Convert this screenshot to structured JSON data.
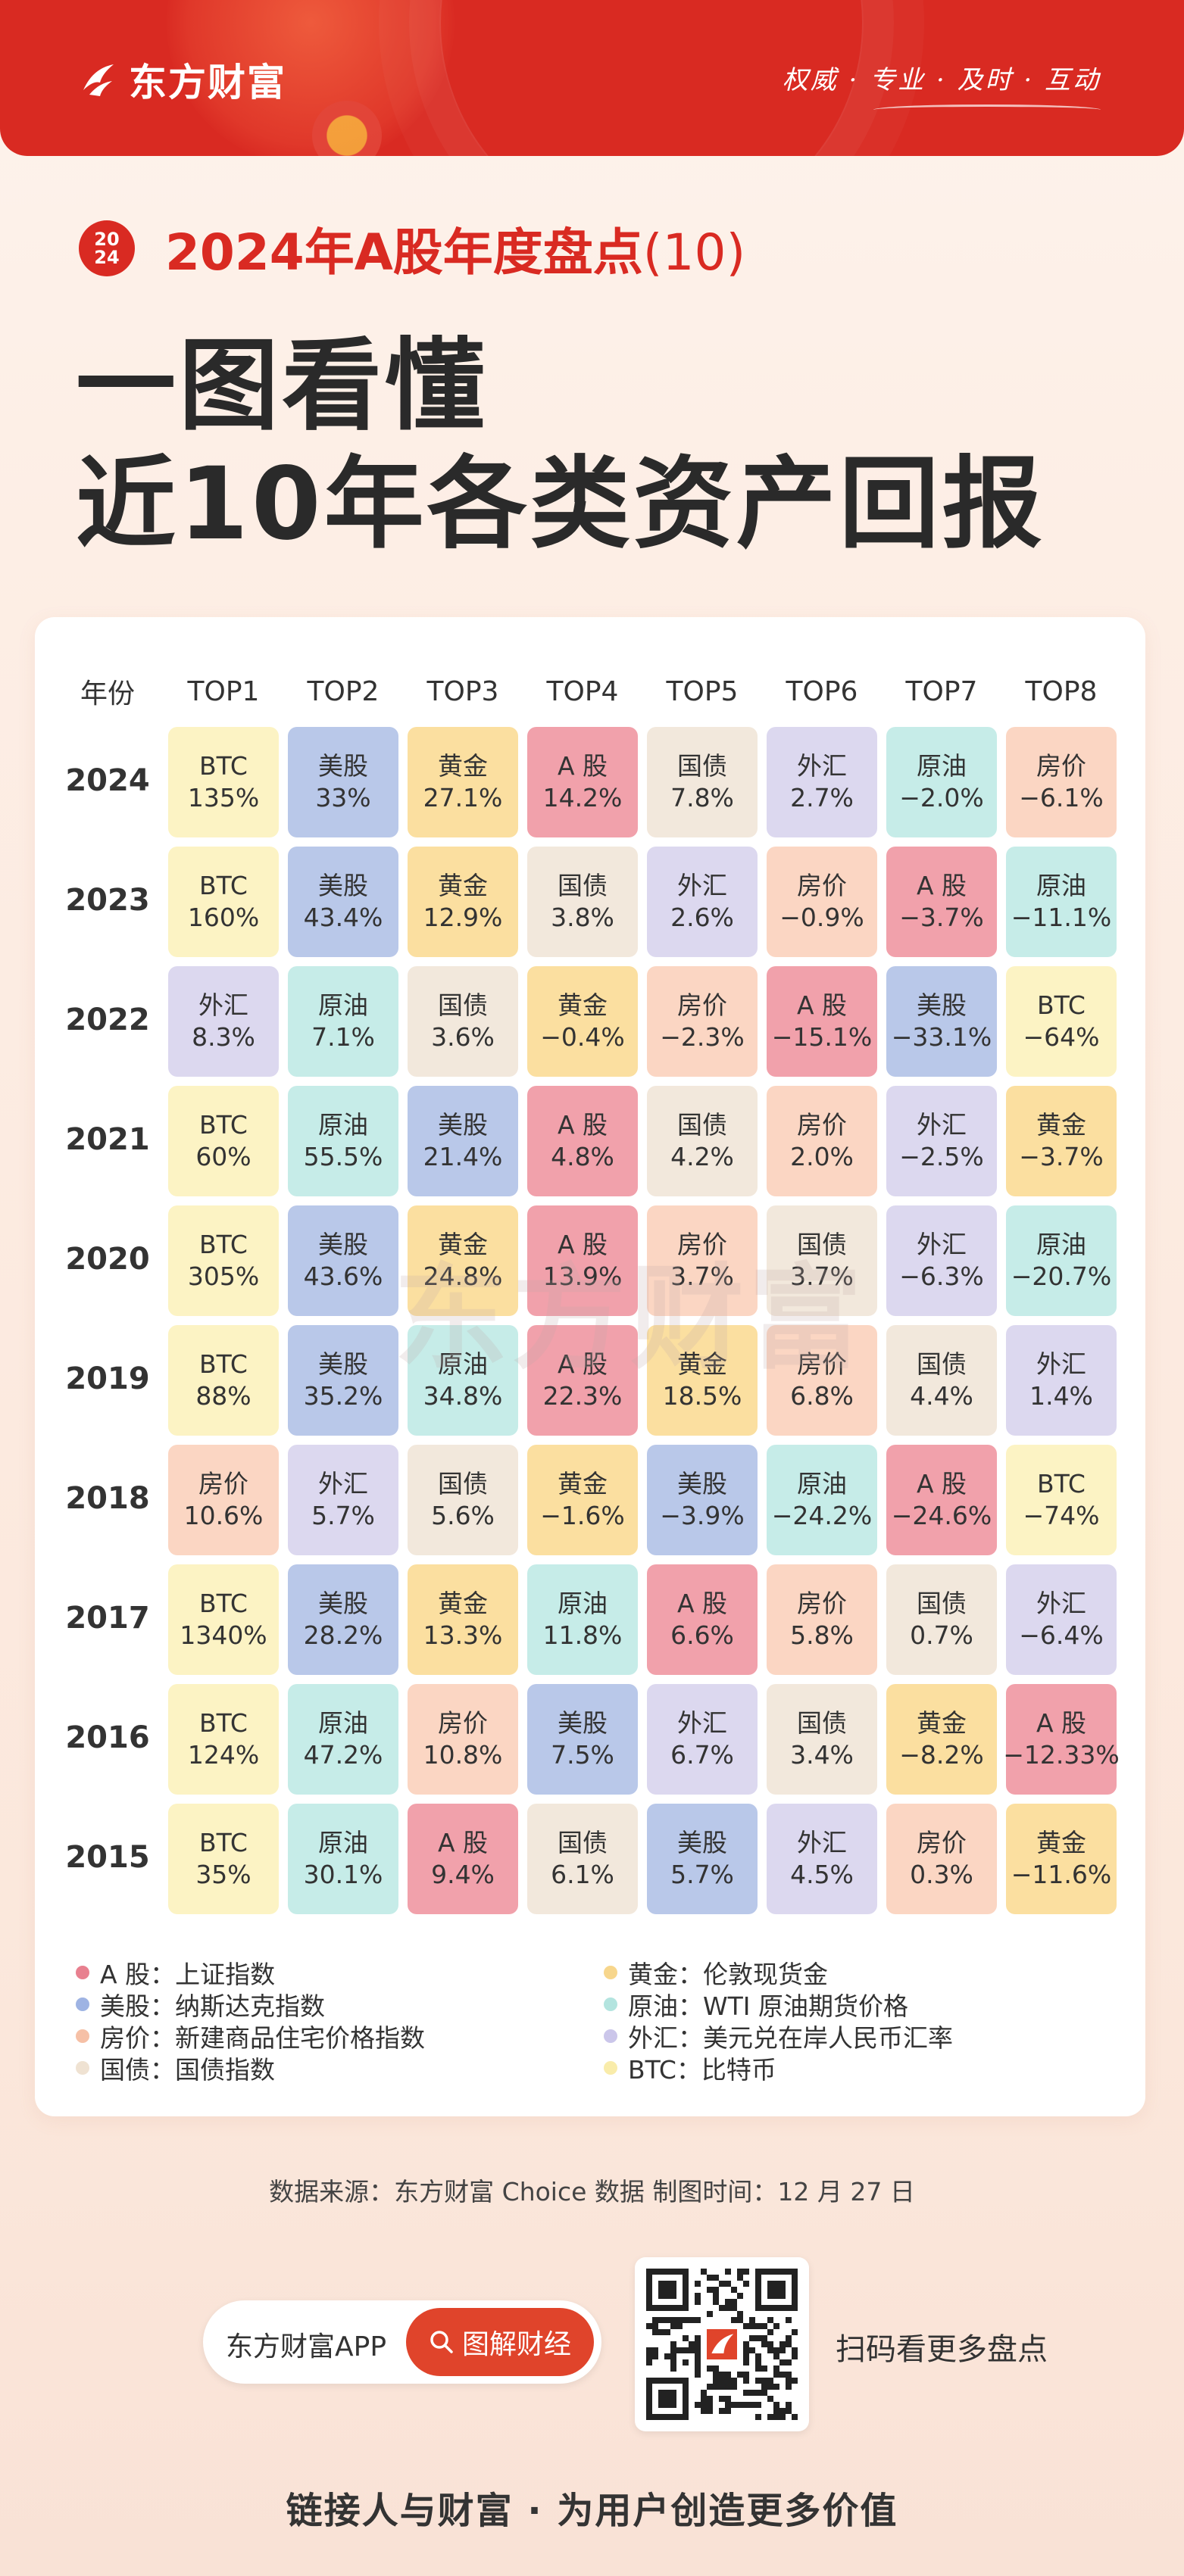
{
  "header": {
    "logo_text": "东方财富",
    "slogan": "权威 · 专业 · 及时 · 互动"
  },
  "title": {
    "badge_top": "20",
    "badge_bottom": "24",
    "series": "2024年A股年度盘点",
    "series_num": "(10)",
    "headline_line1": "一图看懂",
    "headline_line2": "近10年各类资产回报"
  },
  "table": {
    "year_header": "年份",
    "headers": [
      "TOP1",
      "TOP2",
      "TOP3",
      "TOP4",
      "TOP5",
      "TOP6",
      "TOP7",
      "TOP8"
    ],
    "colors": {
      "BTC": "#fcf3c4",
      "美股": "#b9c8e9",
      "黄金": "#fbdfa0",
      "A股": "#f1a1ab",
      "国债": "#f2e8dc",
      "外汇": "#dcd8ef",
      "原油": "#c6ece8",
      "房价": "#fbd6c3"
    },
    "rows": [
      {
        "year": "2024",
        "cells": [
          [
            "BTC",
            "BTC",
            "135%"
          ],
          [
            "美股",
            "美股",
            "33%"
          ],
          [
            "黄金",
            "黄金",
            "27.1%"
          ],
          [
            "A股",
            "A 股",
            "14.2%"
          ],
          [
            "国债",
            "国债",
            "7.8%"
          ],
          [
            "外汇",
            "外汇",
            "2.7%"
          ],
          [
            "原油",
            "原油",
            "−2.0%"
          ],
          [
            "房价",
            "房价",
            "−6.1%"
          ]
        ]
      },
      {
        "year": "2023",
        "cells": [
          [
            "BTC",
            "BTC",
            "160%"
          ],
          [
            "美股",
            "美股",
            "43.4%"
          ],
          [
            "黄金",
            "黄金",
            "12.9%"
          ],
          [
            "国债",
            "国债",
            "3.8%"
          ],
          [
            "外汇",
            "外汇",
            "2.6%"
          ],
          [
            "房价",
            "房价",
            "−0.9%"
          ],
          [
            "A股",
            "A 股",
            "−3.7%"
          ],
          [
            "原油",
            "原油",
            "−11.1%"
          ]
        ]
      },
      {
        "year": "2022",
        "cells": [
          [
            "外汇",
            "外汇",
            "8.3%"
          ],
          [
            "原油",
            "原油",
            "7.1%"
          ],
          [
            "国债",
            "国债",
            "3.6%"
          ],
          [
            "黄金",
            "黄金",
            "−0.4%"
          ],
          [
            "房价",
            "房价",
            "−2.3%"
          ],
          [
            "A股",
            "A 股",
            "−15.1%"
          ],
          [
            "美股",
            "美股",
            "−33.1%"
          ],
          [
            "BTC",
            "BTC",
            "−64%"
          ]
        ]
      },
      {
        "year": "2021",
        "cells": [
          [
            "BTC",
            "BTC",
            "60%"
          ],
          [
            "原油",
            "原油",
            "55.5%"
          ],
          [
            "美股",
            "美股",
            "21.4%"
          ],
          [
            "A股",
            "A 股",
            "4.8%"
          ],
          [
            "国债",
            "国债",
            "4.2%"
          ],
          [
            "房价",
            "房价",
            "2.0%"
          ],
          [
            "外汇",
            "外汇",
            "−2.5%"
          ],
          [
            "黄金",
            "黄金",
            "−3.7%"
          ]
        ]
      },
      {
        "year": "2020",
        "cells": [
          [
            "BTC",
            "BTC",
            "305%"
          ],
          [
            "美股",
            "美股",
            "43.6%"
          ],
          [
            "黄金",
            "黄金",
            "24.8%"
          ],
          [
            "A股",
            "A 股",
            "13.9%"
          ],
          [
            "房价",
            "房价",
            "3.7%"
          ],
          [
            "国债",
            "国债",
            "3.7%"
          ],
          [
            "外汇",
            "外汇",
            "−6.3%"
          ],
          [
            "原油",
            "原油",
            "−20.7%"
          ]
        ]
      },
      {
        "year": "2019",
        "cells": [
          [
            "BTC",
            "BTC",
            "88%"
          ],
          [
            "美股",
            "美股",
            "35.2%"
          ],
          [
            "原油",
            "原油",
            "34.8%"
          ],
          [
            "A股",
            "A 股",
            "22.3%"
          ],
          [
            "黄金",
            "黄金",
            "18.5%"
          ],
          [
            "房价",
            "房价",
            "6.8%"
          ],
          [
            "国债",
            "国债",
            "4.4%"
          ],
          [
            "外汇",
            "外汇",
            "1.4%"
          ]
        ]
      },
      {
        "year": "2018",
        "cells": [
          [
            "房价",
            "房价",
            "10.6%"
          ],
          [
            "外汇",
            "外汇",
            "5.7%"
          ],
          [
            "国债",
            "国债",
            "5.6%"
          ],
          [
            "黄金",
            "黄金",
            "−1.6%"
          ],
          [
            "美股",
            "美股",
            "−3.9%"
          ],
          [
            "原油",
            "原油",
            "−24.2%"
          ],
          [
            "A股",
            "A 股",
            "−24.6%"
          ],
          [
            "BTC",
            "BTC",
            "−74%"
          ]
        ]
      },
      {
        "year": "2017",
        "cells": [
          [
            "BTC",
            "BTC",
            "1340%"
          ],
          [
            "美股",
            "美股",
            "28.2%"
          ],
          [
            "黄金",
            "黄金",
            "13.3%"
          ],
          [
            "原油",
            "原油",
            "11.8%"
          ],
          [
            "A股",
            "A 股",
            "6.6%"
          ],
          [
            "房价",
            "房价",
            "5.8%"
          ],
          [
            "国债",
            "国债",
            "0.7%"
          ],
          [
            "外汇",
            "外汇",
            "−6.4%"
          ]
        ]
      },
      {
        "year": "2016",
        "cells": [
          [
            "BTC",
            "BTC",
            "124%"
          ],
          [
            "原油",
            "原油",
            "47.2%"
          ],
          [
            "房价",
            "房价",
            "10.8%"
          ],
          [
            "美股",
            "美股",
            "7.5%"
          ],
          [
            "外汇",
            "外汇",
            "6.7%"
          ],
          [
            "国债",
            "国债",
            "3.4%"
          ],
          [
            "黄金",
            "黄金",
            "−8.2%"
          ],
          [
            "A股",
            "A 股",
            "−12.33%"
          ]
        ]
      },
      {
        "year": "2015",
        "cells": [
          [
            "BTC",
            "BTC",
            "35%"
          ],
          [
            "原油",
            "原油",
            "30.1%"
          ],
          [
            "A股",
            "A 股",
            "9.4%"
          ],
          [
            "国债",
            "国债",
            "6.1%"
          ],
          [
            "美股",
            "美股",
            "5.7%"
          ],
          [
            "外汇",
            "外汇",
            "4.5%"
          ],
          [
            "房价",
            "房价",
            "0.3%"
          ],
          [
            "黄金",
            "黄金",
            "−11.6%"
          ]
        ]
      }
    ]
  },
  "watermark": "东方财富",
  "legend": {
    "items": [
      {
        "key": "A股",
        "text": "A 股：上证指数",
        "dot": "#e8808f"
      },
      {
        "key": "美股",
        "text": "美股：纳斯达克指数",
        "dot": "#9eb3e3"
      },
      {
        "key": "房价",
        "text": "房价：新建商品住宅价格指数",
        "dot": "#f6c0a6"
      },
      {
        "key": "国债",
        "text": "国债：国债指数",
        "dot": "#efe2d2"
      },
      {
        "key": "黄金",
        "text": "黄金：伦敦现货金",
        "dot": "#f7d68c"
      },
      {
        "key": "原油",
        "text": "原油：WTI 原油期货价格",
        "dot": "#b3e4df"
      },
      {
        "key": "外汇",
        "text": "外汇：美元兑在岸人民币汇率",
        "dot": "#cbc6ea"
      },
      {
        "key": "BTC",
        "text": "BTC：比特币",
        "dot": "#f9ecaa"
      }
    ]
  },
  "footer": {
    "source": "数据来源：东方财富 Choice 数据    制图时间：12 月 27 日",
    "app_label": "东方财富APP",
    "search_button": "图解财经",
    "qr_caption": "扫码看更多盘点",
    "tagline": "链接人与财富 · 为用户创造更多价值"
  }
}
